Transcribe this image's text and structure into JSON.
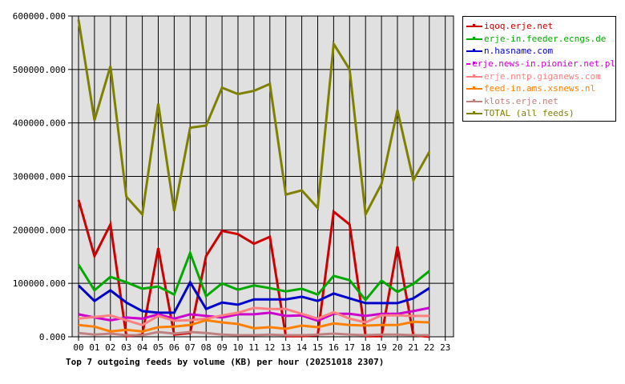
{
  "chart_data": {
    "type": "line",
    "title": "Top 7 outgoing feeds by volume (KB) per hour (20251018 2307)",
    "xlabel": "",
    "ylabel": "",
    "ylim": [
      0,
      600000
    ],
    "y_ticks": [
      "0.000",
      "100000.000",
      "200000.000",
      "300000.000",
      "400000.000",
      "500000.000",
      "600000.000"
    ],
    "categories": [
      "00",
      "01",
      "02",
      "03",
      "04",
      "05",
      "06",
      "07",
      "08",
      "09",
      "10",
      "11",
      "12",
      "13",
      "14",
      "15",
      "16",
      "17",
      "18",
      "19",
      "20",
      "21",
      "22",
      "23"
    ],
    "grid": true,
    "legend_position": "right-top",
    "series": [
      {
        "name": "iqoq.erje.net",
        "color": "#cc0000",
        "values": [
          256000,
          151000,
          210000,
          1000,
          4000,
          166000,
          4000,
          7000,
          151000,
          198000,
          192000,
          174000,
          187000,
          1000,
          1000,
          3000,
          234000,
          210000,
          1000,
          1000,
          169000,
          3000,
          0
        ]
      },
      {
        "name": "erje-in.feeder.ecngs.de",
        "color": "#00aa00",
        "values": [
          135000,
          87000,
          112000,
          102000,
          90000,
          94000,
          79000,
          157000,
          76000,
          100000,
          88000,
          96000,
          91000,
          85000,
          90000,
          79000,
          114000,
          106000,
          69000,
          105000,
          84000,
          99000,
          123000
        ]
      },
      {
        "name": "n.hasname.com",
        "color": "#0000cc",
        "values": [
          96000,
          67000,
          87000,
          64000,
          48000,
          45000,
          45000,
          102000,
          52000,
          64000,
          60000,
          70000,
          70000,
          70000,
          75000,
          67000,
          81000,
          72000,
          63000,
          63000,
          63000,
          72000,
          91000
        ]
      },
      {
        "name": "erje.news-in.pionier.net.pl",
        "color": "#cc00cc",
        "values": [
          42000,
          36000,
          31000,
          36000,
          34000,
          42000,
          34000,
          42000,
          39000,
          36000,
          42000,
          42000,
          45000,
          39000,
          40000,
          30000,
          43000,
          43000,
          39000,
          43000,
          43000,
          48000,
          54000
        ]
      },
      {
        "name": "erje.nntp.giganews.com",
        "color": "#ff8080",
        "values": [
          34000,
          37000,
          40000,
          31000,
          22000,
          39000,
          30000,
          31000,
          34000,
          40000,
          45000,
          54000,
          52000,
          52000,
          43000,
          34000,
          46000,
          34000,
          27000,
          40000,
          40000,
          39000,
          39000
        ]
      },
      {
        "name": "feed-in.ams.xsnews.nl",
        "color": "#ff8000",
        "values": [
          22000,
          19000,
          10000,
          13000,
          10000,
          18000,
          19000,
          22000,
          31000,
          27000,
          24000,
          16000,
          18000,
          15000,
          21000,
          18000,
          25000,
          22000,
          21000,
          22000,
          22000,
          28000,
          27000
        ]
      },
      {
        "name": "klots.erje.net",
        "color": "#c08080",
        "values": [
          7000,
          4000,
          6000,
          3000,
          3000,
          9000,
          6000,
          9000,
          7000,
          4000,
          3000,
          3000,
          4000,
          3000,
          3000,
          4000,
          6000,
          4000,
          3000,
          4000,
          4000,
          3000,
          3000
        ]
      },
      {
        "name": "TOTAL (all feeds)",
        "color": "#808000",
        "values": [
          593000,
          405000,
          506000,
          262000,
          229000,
          436000,
          235000,
          391000,
          395000,
          466000,
          454000,
          460000,
          473000,
          266000,
          274000,
          241000,
          548000,
          500000,
          229000,
          286000,
          424000,
          293000,
          346000
        ]
      }
    ]
  },
  "colors": {
    "plot_background": "#e0e0e0",
    "grid": "#000000",
    "page_background": "#ffffff"
  }
}
